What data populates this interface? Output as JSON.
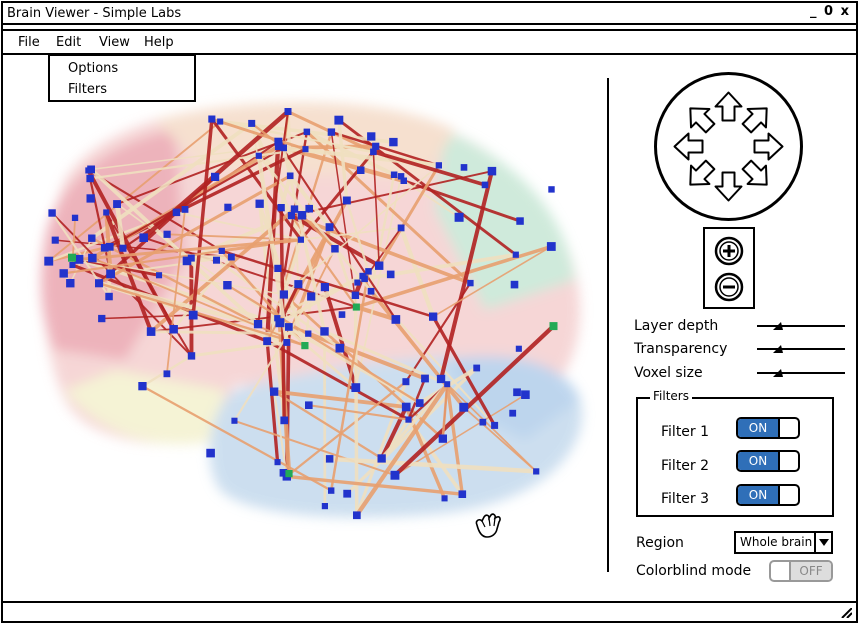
{
  "window": {
    "title": "Brain Viewer - Simple Labs",
    "controls": [
      "_",
      "0",
      "x"
    ]
  },
  "menu": {
    "items": [
      "File",
      "Edit",
      "View",
      "Help"
    ]
  },
  "dropdown": {
    "items": [
      "Options",
      "Filters"
    ]
  },
  "viz": {
    "network_colors": [
      "#b22222",
      "#e8a070",
      "#f0e0c0",
      "#2233cc",
      "#22aa55"
    ]
  },
  "sliders": [
    {
      "label": "Layer depth",
      "level": 0.2
    },
    {
      "label": "Transparency",
      "level": 0.2
    },
    {
      "label": "Voxel size",
      "level": 0.2
    }
  ],
  "filters": {
    "title": "Filters",
    "items": [
      {
        "label": "Filter 1",
        "state": "ON"
      },
      {
        "label": "Filter 2",
        "state": "ON"
      },
      {
        "label": "Filter 3",
        "state": "ON"
      }
    ]
  },
  "region": {
    "label": "Region",
    "value": "Whole brain"
  },
  "colorblind": {
    "label": "Colorblind mode",
    "state": "OFF"
  },
  "colors": {
    "toggle_on": "#2f6fb8",
    "toggle_off": "#dddddd"
  }
}
